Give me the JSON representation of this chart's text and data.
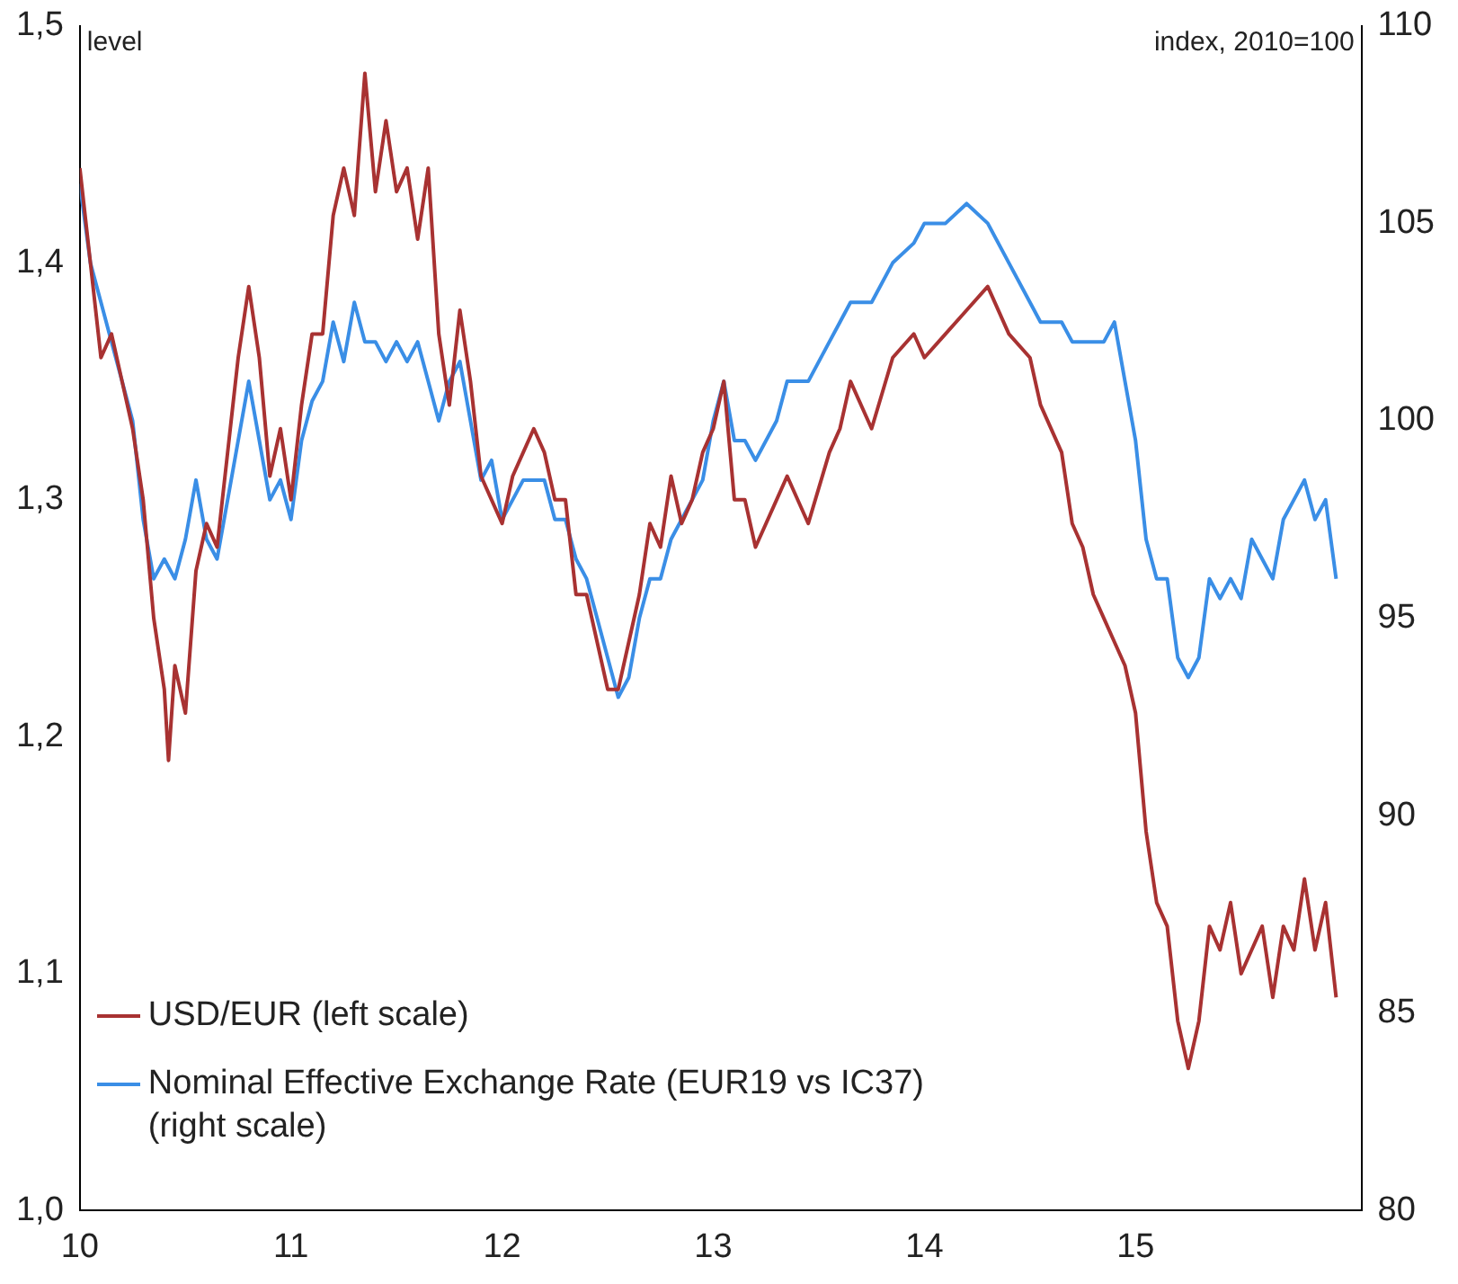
{
  "chart_data": {
    "type": "line",
    "ylabel": "level",
    "y2label": "index, 2010=100",
    "legend": "bottom left",
    "xlim": [
      10,
      16.07
    ],
    "xticks": [
      10,
      11,
      12,
      13,
      14,
      15
    ],
    "ylim": [
      1.0,
      1.5
    ],
    "yticks": [
      {
        "value": 1.0,
        "label": "1,0"
      },
      {
        "value": 1.1,
        "label": "1,1"
      },
      {
        "value": 1.2,
        "label": "1,2"
      },
      {
        "value": 1.3,
        "label": "1,3"
      },
      {
        "value": 1.4,
        "label": "1,4"
      },
      {
        "value": 1.5,
        "label": "1,5"
      }
    ],
    "y2lim": [
      80,
      110
    ],
    "y2ticks": [
      80,
      85,
      90,
      95,
      100,
      105,
      110
    ],
    "series": [
      {
        "name": "USD/EUR (left scale)",
        "color": "#a83232",
        "x": [
          10.0,
          10.05,
          10.1,
          10.15,
          10.2,
          10.25,
          10.3,
          10.35,
          10.4,
          10.42,
          10.45,
          10.5,
          10.55,
          10.6,
          10.65,
          10.7,
          10.75,
          10.8,
          10.85,
          10.9,
          10.95,
          11.0,
          11.05,
          11.1,
          11.15,
          11.2,
          11.25,
          11.3,
          11.35,
          11.4,
          11.45,
          11.5,
          11.55,
          11.6,
          11.65,
          11.7,
          11.75,
          11.8,
          11.85,
          11.9,
          11.95,
          12.0,
          12.05,
          12.1,
          12.15,
          12.2,
          12.25,
          12.3,
          12.35,
          12.4,
          12.45,
          12.5,
          12.55,
          12.6,
          12.65,
          12.7,
          12.75,
          12.8,
          12.85,
          12.9,
          12.95,
          13.0,
          13.05,
          13.1,
          13.15,
          13.2,
          13.3,
          13.35,
          13.45,
          13.55,
          13.6,
          13.65,
          13.75,
          13.85,
          13.95,
          14.0,
          14.1,
          14.2,
          14.3,
          14.4,
          14.5,
          14.55,
          14.65,
          14.7,
          14.75,
          14.8,
          14.85,
          14.9,
          14.95,
          15.0,
          15.05,
          15.1,
          15.15,
          15.2,
          15.25,
          15.3,
          15.35,
          15.4,
          15.45,
          15.5,
          15.55,
          15.6,
          15.65,
          15.7,
          15.75,
          15.8,
          15.85,
          15.9,
          15.95
        ],
        "values": [
          1.44,
          1.4,
          1.36,
          1.37,
          1.35,
          1.33,
          1.3,
          1.25,
          1.22,
          1.19,
          1.23,
          1.21,
          1.27,
          1.29,
          1.28,
          1.32,
          1.36,
          1.39,
          1.36,
          1.31,
          1.33,
          1.3,
          1.34,
          1.37,
          1.37,
          1.42,
          1.44,
          1.42,
          1.48,
          1.43,
          1.46,
          1.43,
          1.44,
          1.41,
          1.44,
          1.37,
          1.34,
          1.38,
          1.35,
          1.31,
          1.3,
          1.29,
          1.31,
          1.32,
          1.33,
          1.32,
          1.3,
          1.3,
          1.26,
          1.26,
          1.24,
          1.22,
          1.22,
          1.24,
          1.26,
          1.29,
          1.28,
          1.31,
          1.29,
          1.3,
          1.32,
          1.33,
          1.35,
          1.3,
          1.3,
          1.28,
          1.3,
          1.31,
          1.29,
          1.32,
          1.33,
          1.35,
          1.33,
          1.36,
          1.37,
          1.36,
          1.37,
          1.38,
          1.39,
          1.37,
          1.36,
          1.34,
          1.32,
          1.29,
          1.28,
          1.26,
          1.25,
          1.24,
          1.23,
          1.21,
          1.16,
          1.13,
          1.12,
          1.08,
          1.06,
          1.08,
          1.12,
          1.11,
          1.13,
          1.1,
          1.11,
          1.12,
          1.09,
          1.12,
          1.11,
          1.14,
          1.11,
          1.13,
          1.09
        ]
      },
      {
        "name": "Nominal Effective Exchange Rate (EUR19 vs IC37) (right scale)",
        "color": "#3a8ee6",
        "axis": "y2",
        "x": [
          10.0,
          10.05,
          10.1,
          10.15,
          10.2,
          10.25,
          10.3,
          10.35,
          10.4,
          10.45,
          10.5,
          10.55,
          10.6,
          10.65,
          10.7,
          10.75,
          10.8,
          10.85,
          10.9,
          10.95,
          11.0,
          11.05,
          11.1,
          11.15,
          11.2,
          11.25,
          11.3,
          11.35,
          11.4,
          11.45,
          11.5,
          11.55,
          11.6,
          11.65,
          11.7,
          11.75,
          11.8,
          11.85,
          11.9,
          11.95,
          12.0,
          12.05,
          12.1,
          12.15,
          12.2,
          12.25,
          12.3,
          12.35,
          12.4,
          12.45,
          12.5,
          12.55,
          12.6,
          12.65,
          12.7,
          12.75,
          12.8,
          12.85,
          12.9,
          12.95,
          13.0,
          13.05,
          13.1,
          13.15,
          13.2,
          13.3,
          13.35,
          13.45,
          13.55,
          13.6,
          13.65,
          13.75,
          13.85,
          13.95,
          14.0,
          14.1,
          14.2,
          14.3,
          14.4,
          14.5,
          14.55,
          14.65,
          14.7,
          14.75,
          14.8,
          14.85,
          14.9,
          14.95,
          15.0,
          15.05,
          15.1,
          15.15,
          15.2,
          15.25,
          15.3,
          15.35,
          15.4,
          15.45,
          15.5,
          15.55,
          15.6,
          15.65,
          15.7,
          15.75,
          15.8,
          15.85,
          15.9,
          15.95
        ],
        "values": [
          106,
          104,
          103,
          102,
          101,
          100,
          97.5,
          96,
          96.5,
          96,
          97,
          98.5,
          97,
          96.5,
          98,
          99.5,
          101,
          99.5,
          98,
          98.5,
          97.5,
          99.5,
          100.5,
          101,
          102.5,
          101.5,
          103,
          102,
          102,
          101.5,
          102,
          101.5,
          102,
          101,
          100,
          101,
          101.5,
          100,
          98.5,
          99,
          97.5,
          98,
          98.5,
          98.5,
          98.5,
          97.5,
          97.5,
          96.5,
          96,
          95,
          94,
          93,
          93.5,
          95,
          96,
          96,
          97,
          97.5,
          98,
          98.5,
          100,
          101,
          99.5,
          99.5,
          99,
          100,
          101,
          101,
          102,
          102.5,
          103,
          103,
          104,
          104.5,
          105,
          105,
          105.5,
          105,
          104,
          103,
          102.5,
          102.5,
          102,
          102,
          102,
          102,
          102.5,
          101,
          99.5,
          97,
          96,
          96,
          94,
          93.5,
          94,
          96,
          95.5,
          96,
          95.5,
          97,
          96.5,
          96,
          97.5,
          98,
          98.5,
          97.5,
          98,
          96
        ]
      }
    ]
  }
}
